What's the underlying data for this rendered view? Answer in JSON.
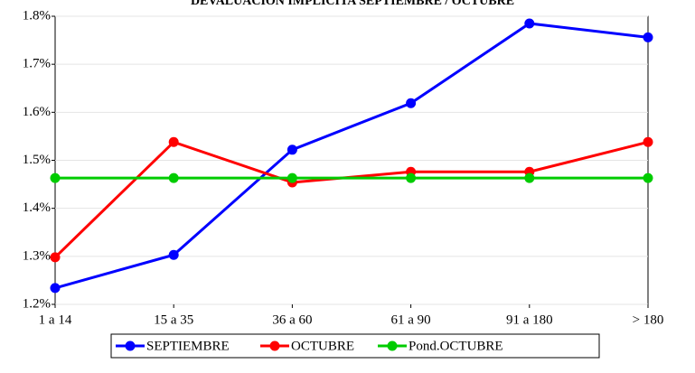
{
  "chart_data": {
    "type": "line",
    "title": "DEVALUACION IMPLICITA SEPTIEMBRE / OCTUBRE",
    "categories": [
      "1 a 14",
      "15 a 35",
      "36 a 60",
      "61 a 90",
      "91 a 180",
      "> 180"
    ],
    "series": [
      {
        "name": "SEPTIEMBRE",
        "color": "#0000ff",
        "values": [
          1.234,
          1.303,
          1.522,
          1.619,
          1.785,
          1.756
        ]
      },
      {
        "name": "OCTUBRE",
        "color": "#ff0000",
        "values": [
          1.298,
          1.538,
          1.454,
          1.476,
          1.476,
          1.538
        ]
      },
      {
        "name": "Pond.OCTUBRE",
        "color": "#00cc00",
        "values": [
          1.463,
          1.463,
          1.463,
          1.463,
          1.463,
          1.463
        ]
      }
    ],
    "ylim": [
      1.2,
      1.8
    ],
    "yticks": [
      {
        "value": 1.2,
        "label": "1.2%"
      },
      {
        "value": 1.3,
        "label": "1.3%"
      },
      {
        "value": 1.4,
        "label": "1.4%"
      },
      {
        "value": 1.5,
        "label": "1.5%"
      },
      {
        "value": 1.6,
        "label": "1.6%"
      },
      {
        "value": 1.7,
        "label": "1.7%"
      },
      {
        "value": 1.8,
        "label": "1.8%"
      }
    ],
    "grid": true,
    "legend": "bottom"
  }
}
